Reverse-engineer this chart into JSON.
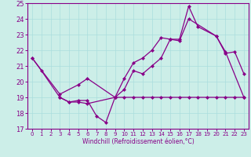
{
  "xlabel": "Windchill (Refroidissement éolien,°C)",
  "background_color": "#cceee8",
  "grid_color": "#aadddd",
  "line_color": "#880088",
  "xlim": [
    -0.5,
    23.5
  ],
  "ylim": [
    17,
    25
  ],
  "xticks": [
    0,
    1,
    2,
    3,
    4,
    5,
    6,
    7,
    8,
    9,
    10,
    11,
    12,
    13,
    14,
    15,
    16,
    17,
    18,
    19,
    20,
    21,
    22,
    23
  ],
  "yticks": [
    17,
    18,
    19,
    20,
    21,
    22,
    23,
    24,
    25
  ],
  "line_jagged": {
    "x": [
      0,
      1,
      3,
      4,
      5,
      6,
      7,
      8,
      9,
      10,
      11,
      12,
      13,
      14,
      15,
      16,
      17,
      20,
      21,
      22,
      23
    ],
    "y": [
      21.5,
      20.7,
      19.0,
      18.7,
      18.8,
      18.8,
      17.8,
      17.4,
      19.0,
      19.5,
      20.7,
      20.5,
      21.0,
      21.5,
      22.7,
      22.6,
      24.0,
      22.9,
      21.8,
      21.9,
      20.5
    ]
  },
  "line_flat": {
    "x": [
      3,
      4,
      5,
      6,
      9,
      10,
      11,
      12,
      13,
      14,
      15,
      16,
      17,
      18,
      19,
      20,
      21,
      22,
      23
    ],
    "y": [
      19.0,
      18.7,
      18.7,
      18.6,
      19.0,
      19.0,
      19.0,
      19.0,
      19.0,
      19.0,
      19.0,
      19.0,
      19.0,
      19.0,
      19.0,
      19.0,
      19.0,
      19.0,
      19.0
    ]
  },
  "line_rising": {
    "x": [
      0,
      3,
      5,
      6,
      9,
      10,
      11,
      12,
      13,
      14,
      15,
      16,
      17,
      18,
      20,
      21,
      23
    ],
    "y": [
      21.5,
      19.2,
      19.8,
      20.2,
      19.0,
      20.2,
      21.2,
      21.5,
      22.0,
      22.8,
      22.7,
      22.7,
      24.8,
      23.5,
      22.9,
      21.9,
      19.0
    ]
  }
}
